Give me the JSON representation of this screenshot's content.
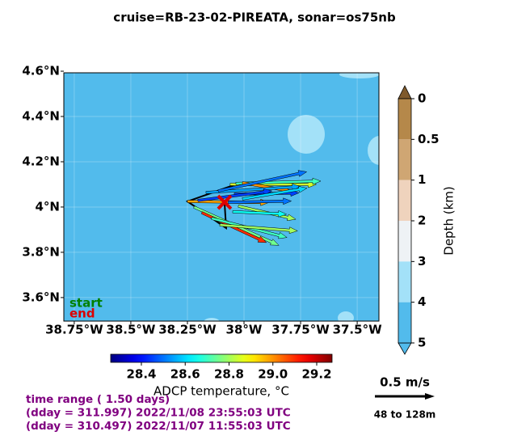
{
  "chart_data": {
    "type": "quiver-map",
    "title": "cruise=RB-23-02-PIREATA,   sonar=os75nb",
    "xlim": [
      -38.796,
      -37.404
    ],
    "ylim": [
      3.496,
      4.593
    ],
    "xticks": [
      {
        "value": -38.75,
        "label": "38.75°W"
      },
      {
        "value": -38.5,
        "label": "38.5°W"
      },
      {
        "value": -38.25,
        "label": "38.25°W"
      },
      {
        "value": -38.0,
        "label": "38°W"
      },
      {
        "value": -37.75,
        "label": "37.75°W"
      },
      {
        "value": -37.5,
        "label": "37.5°W"
      }
    ],
    "yticks": [
      {
        "value": 3.6,
        "label": "3.6°N"
      },
      {
        "value": 3.8,
        "label": "3.8°N"
      },
      {
        "value": 4.0,
        "label": "4°N"
      },
      {
        "value": 4.2,
        "label": "4.2°N"
      },
      {
        "value": 4.4,
        "label": "4.4°N"
      },
      {
        "value": 4.6,
        "label": "4.6°N"
      }
    ],
    "grid": true,
    "vectors": {
      "lon": [
        -38.25,
        -38.221,
        -38.186,
        -38.143,
        -38.107,
        -38.061,
        -38.036,
        -38.007,
        -38.168,
        -38.114,
        -38.043,
        -38.071,
        -38.025,
        -38.05,
        -38.204,
        -38.007
      ],
      "lat": [
        4.025,
        4.0,
        3.975,
        3.95,
        3.921,
        4.1,
        4.104,
        4.107,
        4.064,
        4.071,
        4.057,
        4.021,
        4.004,
        3.979,
        4.029,
        4.036
      ],
      "u": [
        0.68,
        0.71,
        0.54,
        0.63,
        0.65,
        0.72,
        0.71,
        0.41,
        0.79,
        0.74,
        0.54,
        0.53,
        0.48,
        0.45,
        0.62,
        0.54
      ],
      "v": [
        -0.01,
        -0.32,
        -0.25,
        -0.16,
        -0.05,
        0,
        0.02,
        -0.07,
        0.05,
        0.16,
        0.01,
        0.01,
        -0.11,
        -0.02,
        0.08,
        0.09
      ],
      "temperature": [
        28.98,
        28.75,
        29.1,
        28.7,
        28.8,
        28.85,
        28.7,
        29.0,
        28.55,
        28.5,
        28.45,
        28.5,
        28.8,
        28.65,
        28.45,
        28.6
      ]
    },
    "track": {
      "lon": [
        -38.036,
        -38.25,
        -38.079,
        -38.086
      ],
      "lat": [
        4.1,
        4.025,
        3.907,
        4.021
      ]
    },
    "start_label": "start",
    "start_color": "#008000",
    "end_label": "end",
    "end_color": "#dd0000",
    "temperature_colorbar": {
      "cmap": "jet",
      "label": "ADCP temperature, °C",
      "lim": [
        28.26,
        29.27
      ],
      "ticks": [
        28.4,
        28.6,
        28.8,
        {
          "value": 29.0,
          "label": "29.0"
        },
        29.2
      ]
    },
    "depth_colorbar": {
      "label": "Depth (km)",
      "levels": [
        0,
        0.5,
        1,
        2,
        3,
        4,
        5
      ],
      "colors": [
        "#b5884a",
        "#cfa673",
        "#efd3bd",
        "#eef2f5",
        "#a3e1f8",
        "#52bbec"
      ],
      "over_color": "#7f5a2c",
      "under_color": "#52bbec"
    },
    "scale": {
      "label": "0.5 m/s",
      "speed": 0.5,
      "depth_range": "48 to 128m"
    },
    "footer": {
      "color": "#800080",
      "lines": [
        "time range ( 1.50 days)",
        "(dday = 311.997) 2022/11/08 23:55:03 UTC",
        "(dday = 310.497) 2022/11/07 11:55:03 UTC"
      ]
    }
  }
}
